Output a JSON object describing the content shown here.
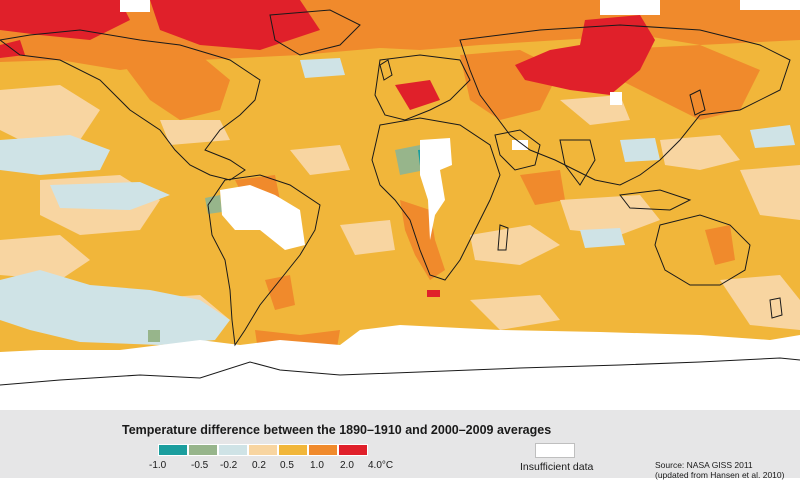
{
  "legend": {
    "title": "Temperature difference between the 1890–1910 and 2000–2009 averages",
    "bins": [
      {
        "from": -1.0,
        "to": -0.5,
        "color": "#1b9e9e"
      },
      {
        "from": -0.5,
        "to": -0.2,
        "color": "#97b58b"
      },
      {
        "from": -0.2,
        "to": 0.2,
        "color": "#cfe3e6"
      },
      {
        "from": 0.2,
        "to": 0.5,
        "color": "#f8d5a1"
      },
      {
        "from": 0.5,
        "to": 1.0,
        "color": "#f1b63a"
      },
      {
        "from": 1.0,
        "to": 2.0,
        "color": "#f08a2c"
      },
      {
        "from": 2.0,
        "to": 4.0,
        "color": "#e0202a"
      }
    ],
    "tick_labels": [
      "-1.0",
      "-0.5",
      "-0.2",
      "0.2",
      "0.5",
      "1.0",
      "2.0",
      "4.0°C"
    ],
    "no_data_label": "Insufficient data",
    "no_data_color": "#ffffff"
  },
  "source": {
    "line1": "Source: NASA GISS 2011",
    "line2": "(updated from Hansen et al. 2010)"
  },
  "map": {
    "background_class_color": "#f1b63a",
    "coastline_color": "#1a1a1a"
  }
}
